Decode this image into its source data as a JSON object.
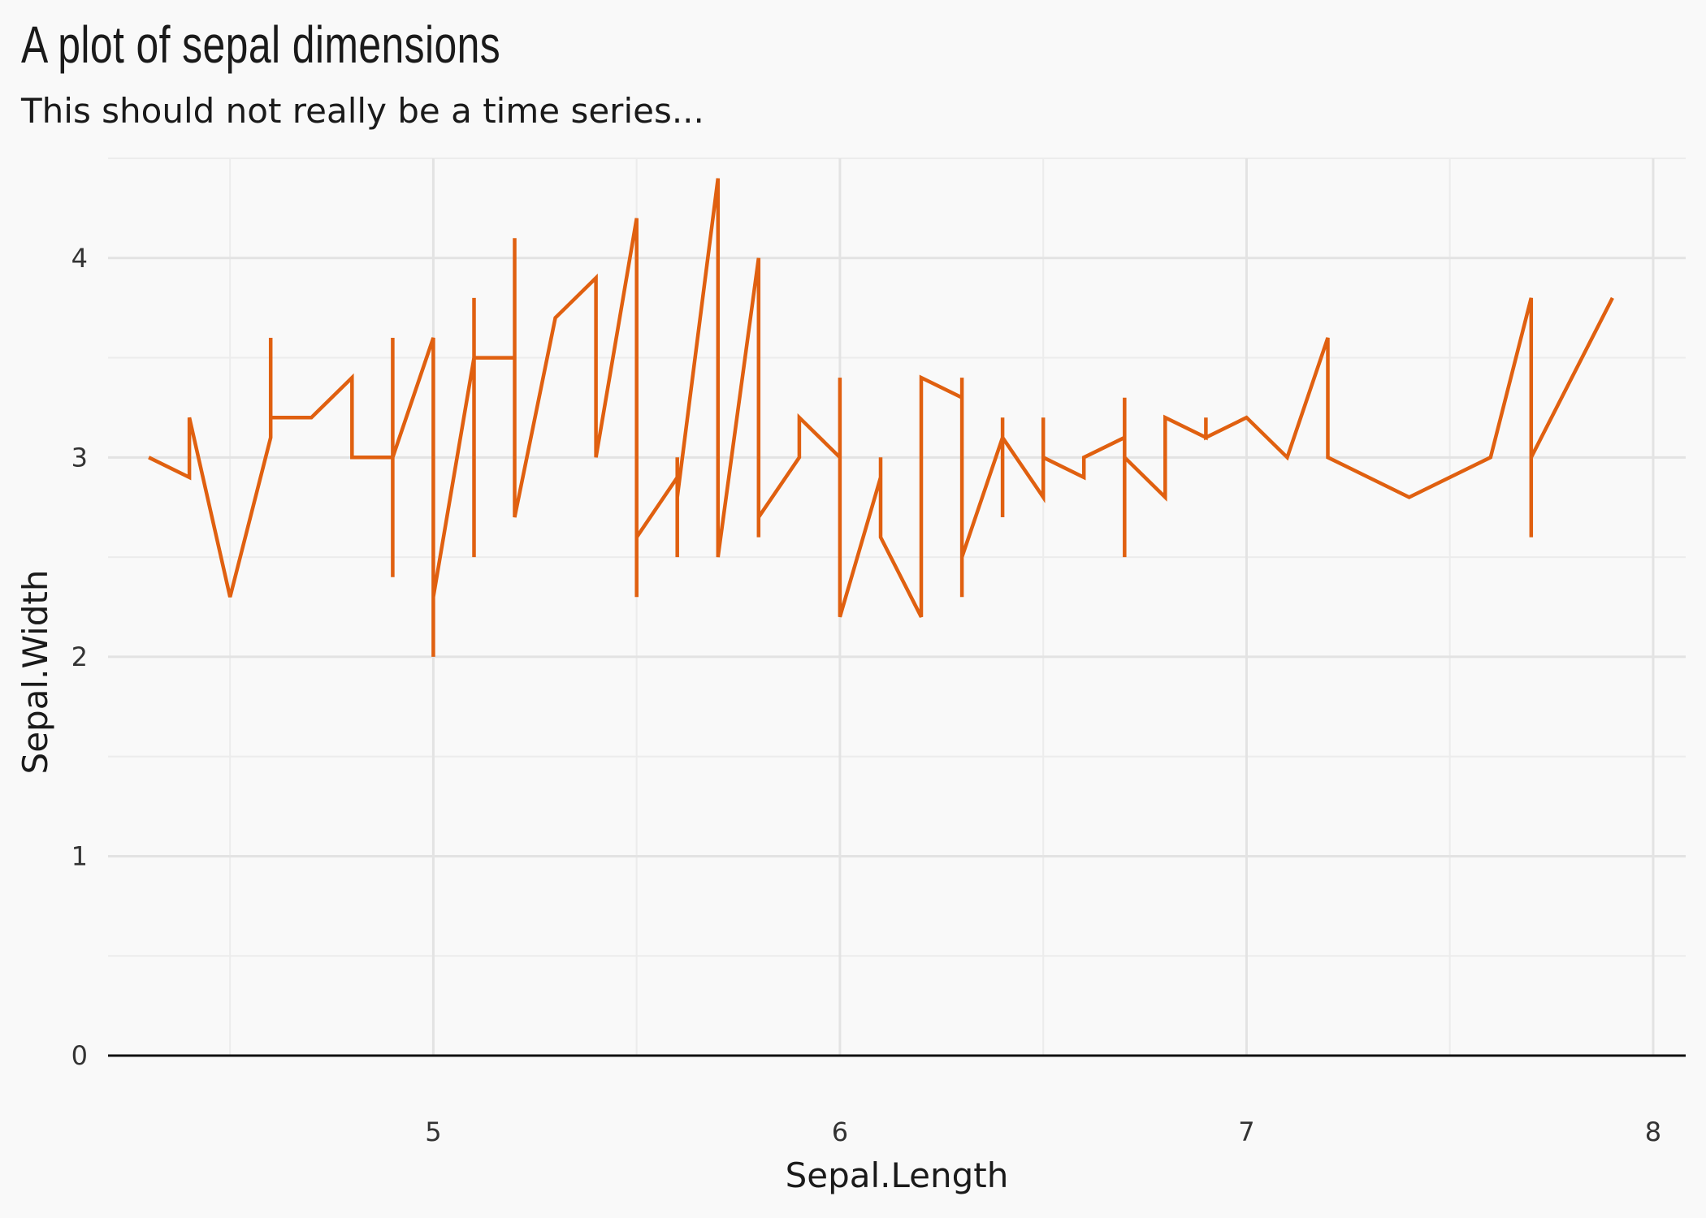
{
  "chart_data": {
    "type": "line",
    "title": "A plot of sepal dimensions",
    "subtitle": "This should not really be a time series...",
    "xlabel": "Sepal.Length",
    "ylabel": "Sepal.Width",
    "xlim": [
      4.2,
      8.08
    ],
    "ylim": [
      0,
      4.5
    ],
    "x_ticks": [
      "5",
      "6",
      "7",
      "8"
    ],
    "y_ticks": [
      "0",
      "1",
      "2",
      "3",
      "4"
    ],
    "grid": true,
    "line_color": "#e06010",
    "series": [
      {
        "x": [
          4.3,
          4.4,
          4.4,
          4.4,
          4.5,
          4.6,
          4.6,
          4.6,
          4.6,
          4.7,
          4.7,
          4.8,
          4.8,
          4.8,
          4.8,
          4.8,
          4.9,
          4.9,
          4.9,
          4.9,
          4.9,
          4.9,
          5.0,
          5.0,
          5.0,
          5.0,
          5.0,
          5.0,
          5.0,
          5.0,
          5.1,
          5.1,
          5.1,
          5.1,
          5.1,
          5.2,
          5.2,
          5.2,
          5.2,
          5.3,
          5.4,
          5.4,
          5.4,
          5.5,
          5.5,
          5.5,
          5.6,
          5.6,
          5.6,
          5.6,
          5.7,
          5.7,
          5.7,
          5.8,
          5.8,
          5.8,
          5.9,
          5.9,
          6.0,
          6.0,
          6.0,
          6.1,
          6.1,
          6.1,
          6.2,
          6.2,
          6.2,
          6.3,
          6.3,
          6.3,
          6.3,
          6.4,
          6.4,
          6.4,
          6.4,
          6.5,
          6.5,
          6.5,
          6.5,
          6.6,
          6.6,
          6.7,
          6.7,
          6.7,
          6.7,
          6.8,
          6.8,
          6.8,
          6.9,
          6.9,
          6.9,
          7.0,
          7.1,
          7.2,
          7.2,
          7.2,
          7.4,
          7.6,
          7.7,
          7.7,
          7.7,
          7.7,
          7.9
        ],
        "y": [
          3.0,
          2.9,
          3.2,
          3.2,
          2.3,
          3.1,
          3.6,
          3.2,
          3.2,
          3.2,
          3.2,
          3.4,
          3.4,
          3.0,
          3.0,
          3.0,
          3.0,
          3.6,
          2.4,
          2.5,
          3.0,
          3.0,
          3.6,
          2.0,
          3.6,
          2.3,
          3.6,
          2.3,
          2.3,
          2.3,
          3.5,
          3.8,
          2.5,
          2.5,
          3.5,
          3.5,
          4.1,
          2.7,
          2.7,
          3.7,
          3.9,
          3.0,
          3.0,
          4.2,
          2.3,
          2.6,
          2.9,
          3.0,
          2.5,
          2.8,
          4.4,
          2.5,
          2.5,
          4.0,
          2.6,
          2.7,
          3.0,
          3.2,
          3.0,
          3.4,
          2.2,
          2.9,
          3.0,
          2.6,
          2.2,
          3.4,
          3.4,
          3.3,
          3.4,
          2.3,
          2.5,
          3.1,
          3.2,
          2.7,
          3.1,
          2.8,
          3.2,
          3.0,
          3.0,
          2.9,
          3.0,
          3.1,
          3.3,
          2.5,
          3.0,
          2.8,
          3.2,
          3.2,
          3.1,
          3.2,
          3.1,
          3.2,
          3.0,
          3.6,
          3.0,
          3.0,
          2.8,
          3.0,
          3.8,
          2.6,
          3.0,
          3.0,
          3.8
        ]
      }
    ]
  }
}
